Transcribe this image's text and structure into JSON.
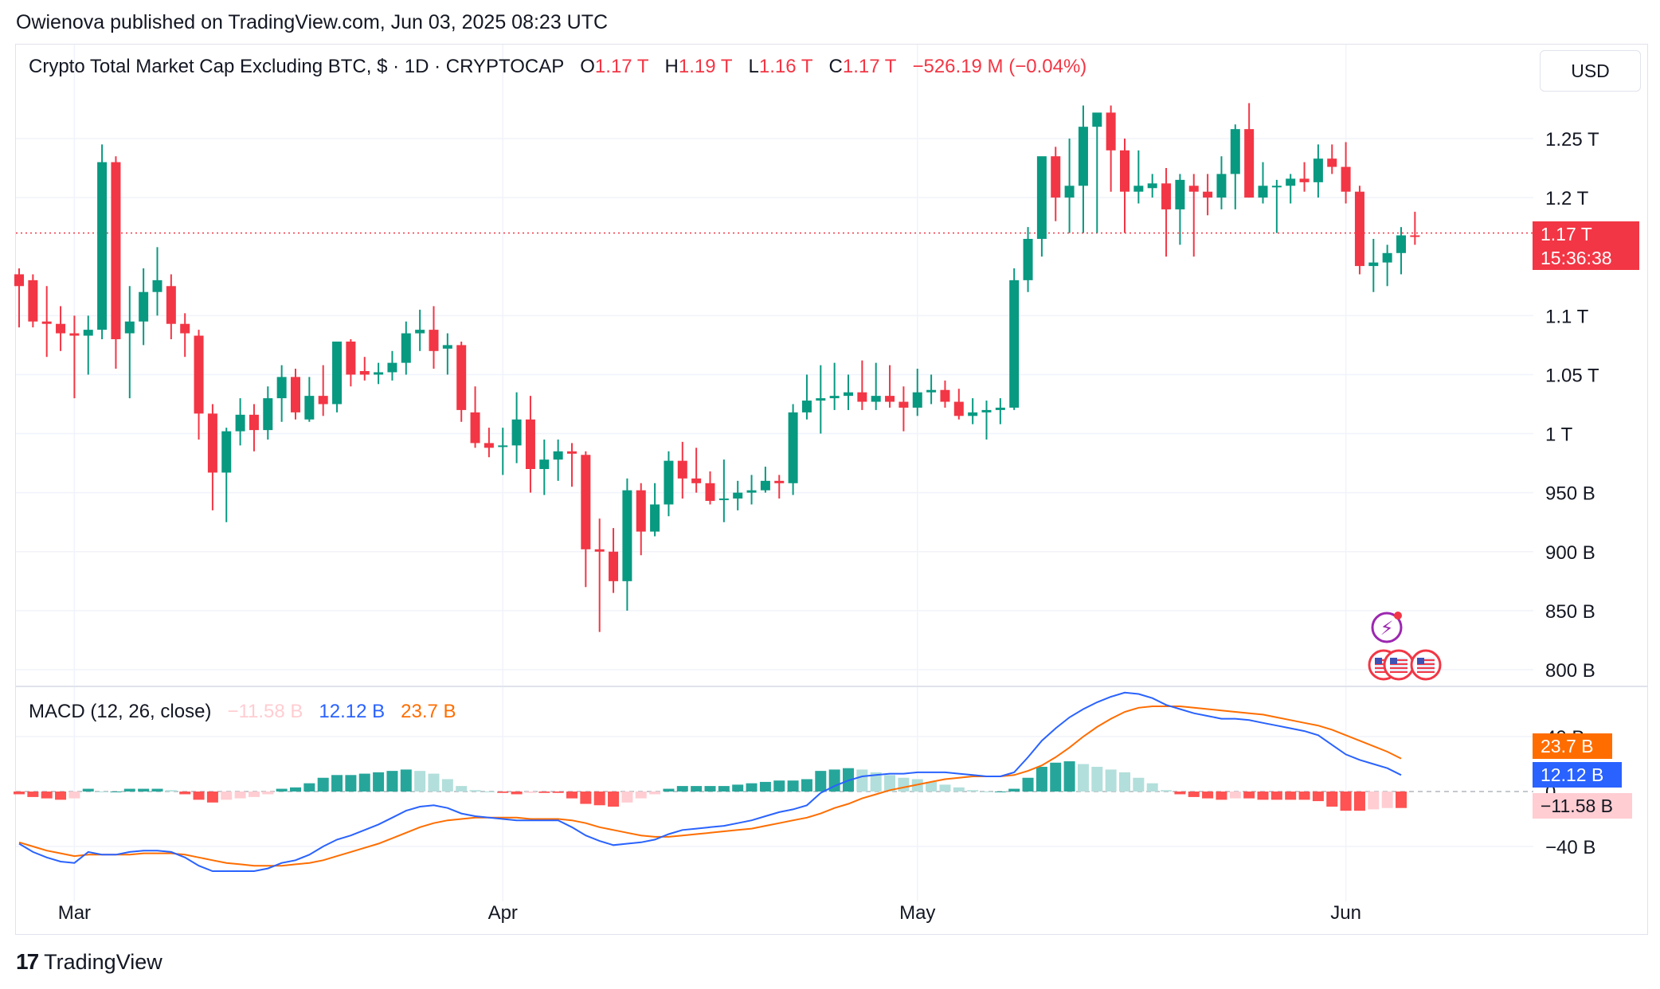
{
  "header": {
    "published": "Owienova published on TradingView.com, Jun 03, 2025 08:23 UTC"
  },
  "legend": {
    "symbol": "Crypto Total Market Cap Excluding BTC, $ · 1D · CRYPTOCAP",
    "o_label": "O",
    "o_value": "1.17 T",
    "h_label": "H",
    "h_value": "1.19 T",
    "l_label": "L",
    "l_value": "1.16 T",
    "c_label": "C",
    "c_value": "1.17 T",
    "change": "−526.19 M (−0.04%)"
  },
  "currency": "USD",
  "price_tag": {
    "price": "1.17 T",
    "countdown": "15:36:38"
  },
  "macd_legend": {
    "title": "MACD (12, 26, close)",
    "hist": "−11.58 B",
    "macd": "12.12 B",
    "signal": "23.7 B"
  },
  "macd_tags": {
    "signal": "23.7 B",
    "macd": "12.12 B",
    "hist": "−11.58 B"
  },
  "footer": {
    "brand": "TradingView"
  },
  "colors": {
    "up": "#089981",
    "down": "#f23645",
    "macd": "#2962ff",
    "signal": "#ff6d00",
    "hist_up_strong": "#26a69a",
    "hist_up_weak": "#b2dfdb",
    "hist_down_strong": "#ff5252",
    "hist_down_weak": "#ffcdd2"
  },
  "chart_data": [
    {
      "type": "candlestick",
      "title": "Crypto Total Market Cap Excluding BTC, $ · 1D · CRYPTOCAP",
      "y_unit": "USD",
      "ylim": [
        780000000000.0,
        1290000000000.0
      ],
      "y_ticks": [
        {
          "value": 1250000000000.0,
          "label": "1.25 T"
        },
        {
          "value": 1200000000000.0,
          "label": "1.2 T"
        },
        {
          "value": 1100000000000.0,
          "label": "1.1 T"
        },
        {
          "value": 1050000000000.0,
          "label": "1.05 T"
        },
        {
          "value": 1000000000000.0,
          "label": "1 T"
        },
        {
          "value": 950000000000.0,
          "label": "950 B"
        },
        {
          "value": 900000000000.0,
          "label": "900 B"
        },
        {
          "value": 850000000000.0,
          "label": "850 B"
        },
        {
          "value": 800000000000.0,
          "label": "800 B"
        }
      ],
      "x_ticks": [
        {
          "index": 4,
          "label": "Mar"
        },
        {
          "index": 35,
          "label": "Apr"
        },
        {
          "index": 65,
          "label": "May"
        },
        {
          "index": 96,
          "label": "Jun"
        }
      ],
      "current_price": 1170000000000.0,
      "candles": [
        [
          1.135,
          1.14,
          1.09,
          1.125
        ],
        [
          1.13,
          1.135,
          1.09,
          1.095
        ],
        [
          1.095,
          1.125,
          1.065,
          1.093
        ],
        [
          1.093,
          1.108,
          1.07,
          1.085
        ],
        [
          1.085,
          1.1,
          1.03,
          1.083
        ],
        [
          1.083,
          1.1,
          1.05,
          1.088
        ],
        [
          1.088,
          1.245,
          1.08,
          1.23
        ],
        [
          1.23,
          1.235,
          1.055,
          1.08
        ],
        [
          1.085,
          1.125,
          1.03,
          1.095
        ],
        [
          1.095,
          1.14,
          1.075,
          1.12
        ],
        [
          1.12,
          1.158,
          1.1,
          1.13
        ],
        [
          1.125,
          1.135,
          1.08,
          1.093
        ],
        [
          1.093,
          1.102,
          1.065,
          1.085
        ],
        [
          1.083,
          1.088,
          0.995,
          1.017
        ],
        [
          1.017,
          1.025,
          0.935,
          0.967
        ],
        [
          0.967,
          1.005,
          0.925,
          1.002
        ],
        [
          1.002,
          1.03,
          0.99,
          1.016
        ],
        [
          1.016,
          1.025,
          0.985,
          1.003
        ],
        [
          1.003,
          1.04,
          0.995,
          1.03
        ],
        [
          1.03,
          1.058,
          1.01,
          1.048
        ],
        [
          1.048,
          1.055,
          1.012,
          1.018
        ],
        [
          1.012,
          1.048,
          1.01,
          1.032
        ],
        [
          1.032,
          1.058,
          1.015,
          1.025
        ],
        [
          1.025,
          1.058,
          1.018,
          1.078
        ],
        [
          1.078,
          1.08,
          1.04,
          1.05
        ],
        [
          1.053,
          1.065,
          1.045,
          1.05
        ],
        [
          1.05,
          1.06,
          1.042,
          1.052
        ],
        [
          1.052,
          1.07,
          1.045,
          1.06
        ],
        [
          1.06,
          1.095,
          1.05,
          1.085
        ],
        [
          1.085,
          1.105,
          1.07,
          1.088
        ],
        [
          1.088,
          1.108,
          1.055,
          1.07
        ],
        [
          1.072,
          1.085,
          1.05,
          1.075
        ],
        [
          1.075,
          1.078,
          1.01,
          1.02
        ],
        [
          1.018,
          1.04,
          0.988,
          0.992
        ],
        [
          0.992,
          1.005,
          0.98,
          0.988
        ],
        [
          0.99,
          1.005,
          0.965,
          0.99
        ],
        [
          0.99,
          1.035,
          0.975,
          1.012
        ],
        [
          1.012,
          1.032,
          0.95,
          0.97
        ],
        [
          0.97,
          0.995,
          0.948,
          0.978
        ],
        [
          0.978,
          0.995,
          0.96,
          0.985
        ],
        [
          0.985,
          0.992,
          0.955,
          0.983
        ],
        [
          0.982,
          0.985,
          0.87,
          0.902
        ],
        [
          0.902,
          0.928,
          0.832,
          0.9
        ],
        [
          0.9,
          0.92,
          0.865,
          0.875
        ],
        [
          0.875,
          0.962,
          0.85,
          0.952
        ],
        [
          0.952,
          0.958,
          0.897,
          0.917
        ],
        [
          0.917,
          0.958,
          0.913,
          0.94
        ],
        [
          0.94,
          0.985,
          0.93,
          0.977
        ],
        [
          0.977,
          0.993,
          0.945,
          0.962
        ],
        [
          0.962,
          0.988,
          0.95,
          0.958
        ],
        [
          0.958,
          0.968,
          0.94,
          0.943
        ],
        [
          0.945,
          0.978,
          0.925,
          0.945
        ],
        [
          0.945,
          0.96,
          0.935,
          0.95
        ],
        [
          0.95,
          0.965,
          0.94,
          0.952
        ],
        [
          0.952,
          0.972,
          0.95,
          0.96
        ],
        [
          0.96,
          0.965,
          0.945,
          0.958
        ],
        [
          0.958,
          1.025,
          0.948,
          1.018
        ],
        [
          1.018,
          1.05,
          1.012,
          1.028
        ],
        [
          1.028,
          1.058,
          1.0,
          1.03
        ],
        [
          1.03,
          1.06,
          1.02,
          1.032
        ],
        [
          1.032,
          1.05,
          1.02,
          1.035
        ],
        [
          1.035,
          1.062,
          1.02,
          1.027
        ],
        [
          1.027,
          1.06,
          1.02,
          1.032
        ],
        [
          1.032,
          1.058,
          1.022,
          1.027
        ],
        [
          1.027,
          1.04,
          1.002,
          1.022
        ],
        [
          1.022,
          1.055,
          1.015,
          1.035
        ],
        [
          1.035,
          1.05,
          1.025,
          1.037
        ],
        [
          1.037,
          1.045,
          1.022,
          1.027
        ],
        [
          1.027,
          1.038,
          1.012,
          1.015
        ],
        [
          1.015,
          1.03,
          1.008,
          1.018
        ],
        [
          1.018,
          1.028,
          0.995,
          1.02
        ],
        [
          1.02,
          1.03,
          1.008,
          1.022
        ],
        [
          1.022,
          1.14,
          1.02,
          1.13
        ],
        [
          1.13,
          1.175,
          1.12,
          1.165
        ],
        [
          1.165,
          1.2,
          1.15,
          1.235
        ],
        [
          1.235,
          1.243,
          1.18,
          1.2
        ],
        [
          1.2,
          1.25,
          1.17,
          1.21
        ],
        [
          1.21,
          1.278,
          1.17,
          1.26
        ],
        [
          1.26,
          1.265,
          1.17,
          1.272
        ],
        [
          1.272,
          1.278,
          1.205,
          1.24
        ],
        [
          1.24,
          1.25,
          1.17,
          1.205
        ],
        [
          1.205,
          1.24,
          1.195,
          1.21
        ],
        [
          1.208,
          1.22,
          1.2,
          1.212
        ],
        [
          1.212,
          1.225,
          1.15,
          1.19
        ],
        [
          1.19,
          1.22,
          1.16,
          1.215
        ],
        [
          1.21,
          1.22,
          1.15,
          1.205
        ],
        [
          1.205,
          1.22,
          1.185,
          1.2
        ],
        [
          1.2,
          1.235,
          1.19,
          1.22
        ],
        [
          1.22,
          1.262,
          1.19,
          1.258
        ],
        [
          1.258,
          1.28,
          1.2,
          1.2
        ],
        [
          1.2,
          1.23,
          1.195,
          1.21
        ],
        [
          1.21,
          1.215,
          1.17,
          1.21
        ],
        [
          1.21,
          1.22,
          1.195,
          1.216
        ],
        [
          1.216,
          1.23,
          1.205,
          1.213
        ],
        [
          1.213,
          1.245,
          1.2,
          1.233
        ],
        [
          1.233,
          1.245,
          1.22,
          1.226
        ],
        [
          1.226,
          1.247,
          1.195,
          1.205
        ],
        [
          1.205,
          1.21,
          1.135,
          1.142
        ],
        [
          1.142,
          1.165,
          1.12,
          1.145
        ],
        [
          1.145,
          1.16,
          1.125,
          1.153
        ],
        [
          1.153,
          1.175,
          1.135,
          1.168
        ],
        [
          1.168,
          1.188,
          1.16,
          1.167
        ]
      ],
      "candle_scale": 1000000000000.0
    },
    {
      "type": "line+bar",
      "title": "MACD (12, 26, close)",
      "ylim": [
        -60000000000.0,
        80000000000.0
      ],
      "y_ticks": [
        {
          "value": 40000000000.0,
          "label": "40 B"
        },
        {
          "value": 0,
          "label": "0"
        },
        {
          "value": -40000000000.0,
          "label": "−40 B"
        }
      ],
      "series": [
        {
          "name": "MACD",
          "values": [
            -38,
            -44,
            -48,
            -51,
            -52,
            -44,
            -46,
            -46,
            -44,
            -43,
            -43,
            -44,
            -48,
            -54,
            -58,
            -58,
            -58,
            -58,
            -56,
            -52,
            -50,
            -46,
            -40,
            -35,
            -32,
            -28,
            -24,
            -19,
            -14,
            -11,
            -10,
            -12,
            -16,
            -18,
            -19,
            -20,
            -21,
            -21,
            -21,
            -21,
            -26,
            -32,
            -36,
            -39,
            -38,
            -37,
            -35,
            -31,
            -28,
            -27,
            -26,
            -25,
            -23,
            -21,
            -18,
            -15,
            -13,
            -10,
            -1,
            4,
            8,
            11,
            12,
            13,
            13,
            14,
            14,
            14,
            13,
            12,
            11,
            11,
            14,
            25,
            37,
            46,
            54,
            60,
            65,
            69,
            72,
            71,
            68,
            63,
            60,
            57,
            55,
            53,
            53,
            52,
            50,
            48,
            46,
            44,
            41,
            34,
            27,
            23,
            20,
            17,
            12
          ]
        },
        {
          "name": "Signal",
          "values": [
            -37,
            -40,
            -43,
            -45,
            -47,
            -46,
            -46,
            -46,
            -46,
            -45,
            -45,
            -45,
            -46,
            -48,
            -50,
            -52,
            -53,
            -54,
            -54,
            -54,
            -53,
            -52,
            -50,
            -47,
            -44,
            -41,
            -38,
            -34,
            -30,
            -26,
            -23,
            -21,
            -20,
            -19,
            -19,
            -19,
            -19,
            -20,
            -20,
            -20,
            -21,
            -23,
            -26,
            -28,
            -30,
            -32,
            -33,
            -33,
            -32,
            -31,
            -30,
            -29,
            -28,
            -27,
            -25,
            -23,
            -21,
            -19,
            -16,
            -12,
            -9,
            -5,
            -2,
            1,
            3,
            5,
            7,
            9,
            10,
            11,
            11,
            11,
            12,
            15,
            19,
            25,
            32,
            40,
            47,
            53,
            58,
            61,
            62,
            62,
            62,
            61,
            60,
            59,
            58,
            57,
            56,
            54,
            52,
            50,
            48,
            45,
            41,
            37,
            33,
            29,
            24
          ]
        },
        {
          "name": "Histogram",
          "values": [
            -2,
            -4,
            -5,
            -6,
            -5,
            2,
            0,
            0,
            2,
            2,
            2,
            1,
            -2,
            -6,
            -8,
            -6,
            -5,
            -4,
            -2,
            2,
            3,
            6,
            10,
            12,
            12,
            13,
            14,
            15,
            16,
            15,
            13,
            9,
            4,
            1,
            0,
            -1,
            -2,
            -1,
            -1,
            -1,
            -5,
            -9,
            -10,
            -11,
            -8,
            -5,
            -2,
            2,
            4,
            4,
            4,
            4,
            5,
            6,
            7,
            8,
            8,
            9,
            15,
            16,
            17,
            16,
            14,
            12,
            10,
            9,
            7,
            5,
            3,
            1,
            0,
            0,
            2,
            10,
            18,
            21,
            22,
            20,
            18,
            16,
            14,
            10,
            6,
            1,
            -2,
            -4,
            -5,
            -6,
            -5,
            -5,
            -6,
            -6,
            -6,
            -6,
            -7,
            -11,
            -14,
            -14,
            -13,
            -12,
            -12
          ]
        }
      ],
      "value_scale": 1000000000.0
    }
  ]
}
